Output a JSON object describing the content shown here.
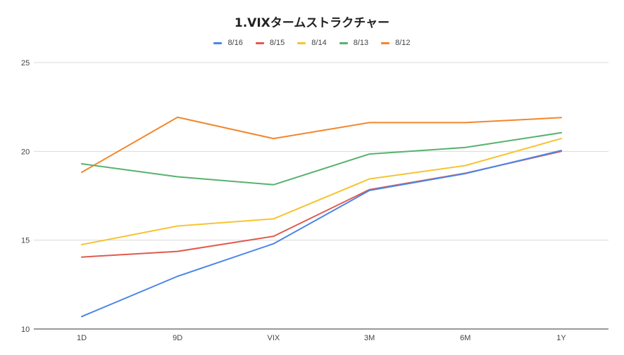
{
  "chart_data": {
    "type": "line",
    "title": "1.VIXタームストラクチャー",
    "categories": [
      "1D",
      "9D",
      "VIX",
      "3M",
      "6M",
      "1Y"
    ],
    "ylim": [
      10,
      25
    ],
    "yticks": [
      "25",
      "20",
      "15",
      "10"
    ],
    "grid": true,
    "legend_position": "top",
    "series": [
      {
        "name": "8/16",
        "color": "#4a86e8",
        "values": [
          10.7,
          12.97,
          14.8,
          17.8,
          18.75,
          20.05
        ]
      },
      {
        "name": "8/15",
        "color": "#e05a4e",
        "values": [
          14.05,
          14.37,
          15.22,
          17.85,
          18.77,
          20.0
        ]
      },
      {
        "name": "8/14",
        "color": "#f6c431",
        "values": [
          14.75,
          15.8,
          16.2,
          18.45,
          19.2,
          20.72
        ]
      },
      {
        "name": "8/13",
        "color": "#57b26f",
        "values": [
          19.3,
          18.57,
          18.12,
          19.85,
          20.22,
          21.05
        ]
      },
      {
        "name": "8/12",
        "color": "#f4862c",
        "values": [
          18.82,
          21.92,
          20.72,
          21.62,
          21.62,
          21.9
        ]
      }
    ]
  }
}
